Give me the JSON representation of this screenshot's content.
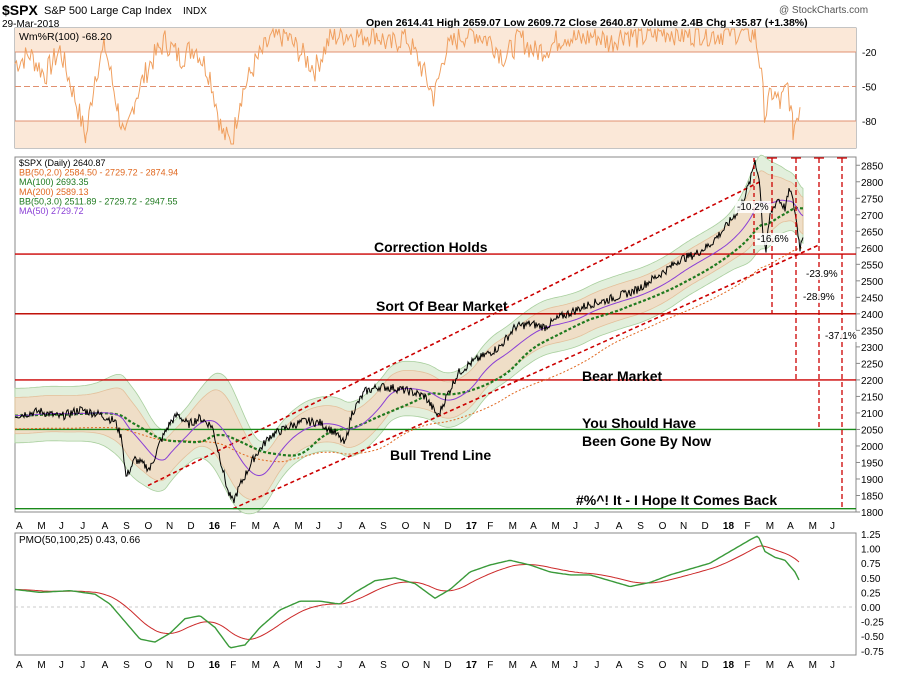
{
  "header": {
    "symbol": "$SPX",
    "name": "S&P 500 Large Cap Index",
    "exchange": "INDX",
    "date": "29-Mar-2018",
    "quote": "Open 2614.41  High 2659.07  Low 2609.72  Close 2640.87  Volume 2.4B  Chg +35.87 (+1.38%)",
    "watermark": "@ StockCharts.com"
  },
  "colors": {
    "price": "#000000",
    "bb2_band": "#f2dcc4",
    "bb3_band": "#d8ead0",
    "ma100": "#1f7a1f",
    "ma200": "#e06820",
    "ma50": "#8a3fd6",
    "willr": "#f0a060",
    "red_level": "#cc0000",
    "green_level": "#1a8a1a",
    "pmo": "#3a9a3a",
    "pmo_signal": "#cc2a2a"
  },
  "williams": {
    "label": "Wm%R(100) -68.20",
    "ticks": [
      "-20",
      "-50",
      "-80"
    ]
  },
  "price_panel": {
    "legend": [
      "$SPX (Daily) 2640.87",
      "BB(50,2.0) 2584.50 - 2729.72 - 2874.94",
      "MA(100) 2693.35",
      "MA(200) 2589.13",
      "BB(50,3.0) 2511.89 - 2729.72 - 2947.55",
      "MA(50) 2729.72"
    ],
    "annotations": {
      "correction": "Correction Holds",
      "sort_bear": "Sort Of Bear Market",
      "bear": "Bear Market",
      "gone1": "You Should Have",
      "gone2": "Been Gone By Now",
      "bull": "Bull Trend Line",
      "hope": "#%^! It - I Hope It Comes Back"
    },
    "drawdowns": [
      "-10.2%",
      "-16.6%",
      "-23.9%",
      "-28.9%",
      "-37.1%"
    ],
    "y_ticks": [
      "2850",
      "2800",
      "2750",
      "2700",
      "2650",
      "2600",
      "2550",
      "2500",
      "2450",
      "2400",
      "2350",
      "2300",
      "2250",
      "2200",
      "2150",
      "2100",
      "2050",
      "2000",
      "1950",
      "1900",
      "1850",
      "1800"
    ]
  },
  "pmo": {
    "label": "PMO(50,100,25) 0.43, 0.66",
    "y_ticks": [
      "1.25",
      "1.00",
      "0.75",
      "0.50",
      "0.25",
      "0.00",
      "-0.25",
      "-0.50",
      "-0.75"
    ]
  },
  "months": [
    "A",
    "M",
    "J",
    "J",
    "A",
    "S",
    "O",
    "N",
    "D",
    "16",
    "F",
    "M",
    "A",
    "M",
    "J",
    "J",
    "A",
    "S",
    "O",
    "N",
    "D",
    "17",
    "F",
    "M",
    "A",
    "M",
    "J",
    "J",
    "A",
    "S",
    "O",
    "N",
    "D",
    "18",
    "F",
    "M",
    "A",
    "M",
    "J"
  ],
  "chart_data": {
    "type": "line",
    "title": "$SPX S&P 500 Large Cap Index",
    "x_range": [
      "2015-04",
      "2018-06"
    ],
    "ylim": [
      1800,
      2875
    ],
    "series": [
      {
        "name": "$SPX (Daily)",
        "x": [
          "2015-04",
          "2015-05",
          "2015-06",
          "2015-07",
          "2015-08",
          "2015-08-25",
          "2015-09",
          "2015-10",
          "2015-11",
          "2015-12",
          "2016-01",
          "2016-02-11",
          "2016-03",
          "2016-04",
          "2016-05",
          "2016-06-27",
          "2016-07",
          "2016-08",
          "2016-09",
          "2016-11-04",
          "2016-12",
          "2017-01",
          "2017-02",
          "2017-03",
          "2017-04",
          "2017-05",
          "2017-06",
          "2017-07",
          "2017-08",
          "2017-09",
          "2017-10",
          "2017-11",
          "2017-12",
          "2018-01-26",
          "2018-02-08",
          "2018-02-26",
          "2018-03-12",
          "2018-03-23",
          "2018-03-29"
        ],
        "values": [
          2090,
          2105,
          2085,
          2100,
          2080,
          1870,
          1940,
          2050,
          2085,
          2060,
          1915,
          1830,
          2015,
          2070,
          2075,
          2005,
          2170,
          2180,
          2160,
          2090,
          2250,
          2275,
          2340,
          2370,
          2360,
          2400,
          2420,
          2450,
          2450,
          2480,
          2570,
          2630,
          2675,
          2872,
          2590,
          2780,
          2785,
          2590,
          2640
        ]
      }
    ],
    "levels": [
      {
        "name": "Correction Holds",
        "value": 2581
      },
      {
        "name": "Sort Of Bear Market",
        "value": 2400
      },
      {
        "name": "Bear Market",
        "value": 2200
      },
      {
        "name": "You Should Have Been Gone By Now",
        "value": 2050
      },
      {
        "name": "#%^! It - I Hope It Comes Back",
        "value": 1810
      }
    ],
    "drawdowns_pct": [
      -10.2,
      -16.6,
      -23.9,
      -28.9,
      -37.1
    ]
  }
}
